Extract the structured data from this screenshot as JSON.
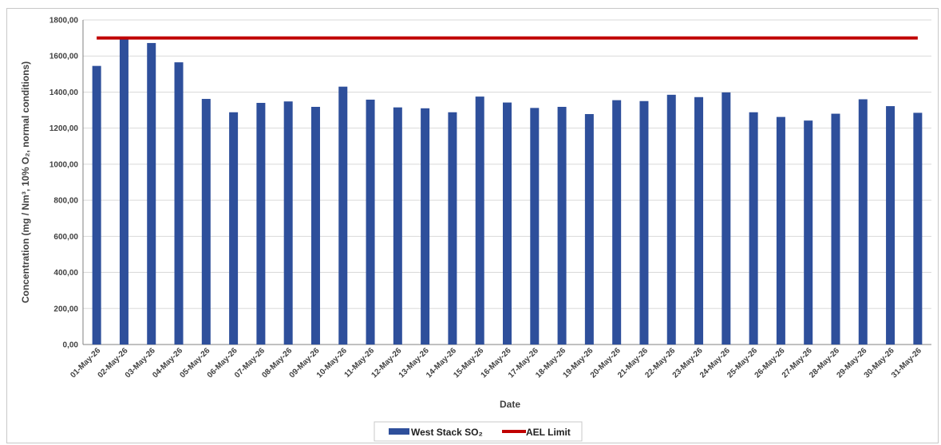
{
  "chart_data": {
    "type": "bar",
    "title": "",
    "xlabel": "Date",
    "ylabel": "Concentration (mg / Nm³, 10% O₂, normal conditions)",
    "ylim": [
      0,
      1800
    ],
    "y_ticks": [
      "0,00",
      "200,00",
      "400,00",
      "600,00",
      "800,00",
      "1000,00",
      "1200,00",
      "1400,00",
      "1600,00",
      "1800,00"
    ],
    "y_tick_values": [
      0,
      200,
      400,
      600,
      800,
      1000,
      1200,
      1400,
      1600,
      1800
    ],
    "grid": true,
    "legend_position": "bottom",
    "categories": [
      "01-May-26",
      "02-May-26",
      "03-May-26",
      "04-May-26",
      "05-May-26",
      "06-May-26",
      "07-May-26",
      "08-May-26",
      "09-May-26",
      "10-May-26",
      "11-May-26",
      "12-May-26",
      "13-May-26",
      "14-May-26",
      "15-May-26",
      "16-May-26",
      "17-May-26",
      "18-May-26",
      "19-May-26",
      "20-May-26",
      "21-May-26",
      "22-May-26",
      "23-May-26",
      "24-May-26",
      "25-May-26",
      "26-May-26",
      "27-May-26",
      "28-May-26",
      "29-May-26",
      "30-May-26",
      "31-May-26"
    ],
    "series": [
      {
        "name": "West Stack SO₂",
        "type": "bar",
        "color": "#2e4f9b",
        "values": [
          1545,
          1695,
          1672,
          1565,
          1362,
          1288,
          1340,
          1348,
          1318,
          1430,
          1358,
          1315,
          1310,
          1288,
          1375,
          1342,
          1312,
          1318,
          1278,
          1355,
          1350,
          1385,
          1372,
          1398,
          1288,
          1262,
          1242,
          1280,
          1360,
          1322,
          1285
        ]
      },
      {
        "name": "AEL Limit",
        "type": "line",
        "color": "#c00000",
        "value": 1700
      }
    ]
  }
}
